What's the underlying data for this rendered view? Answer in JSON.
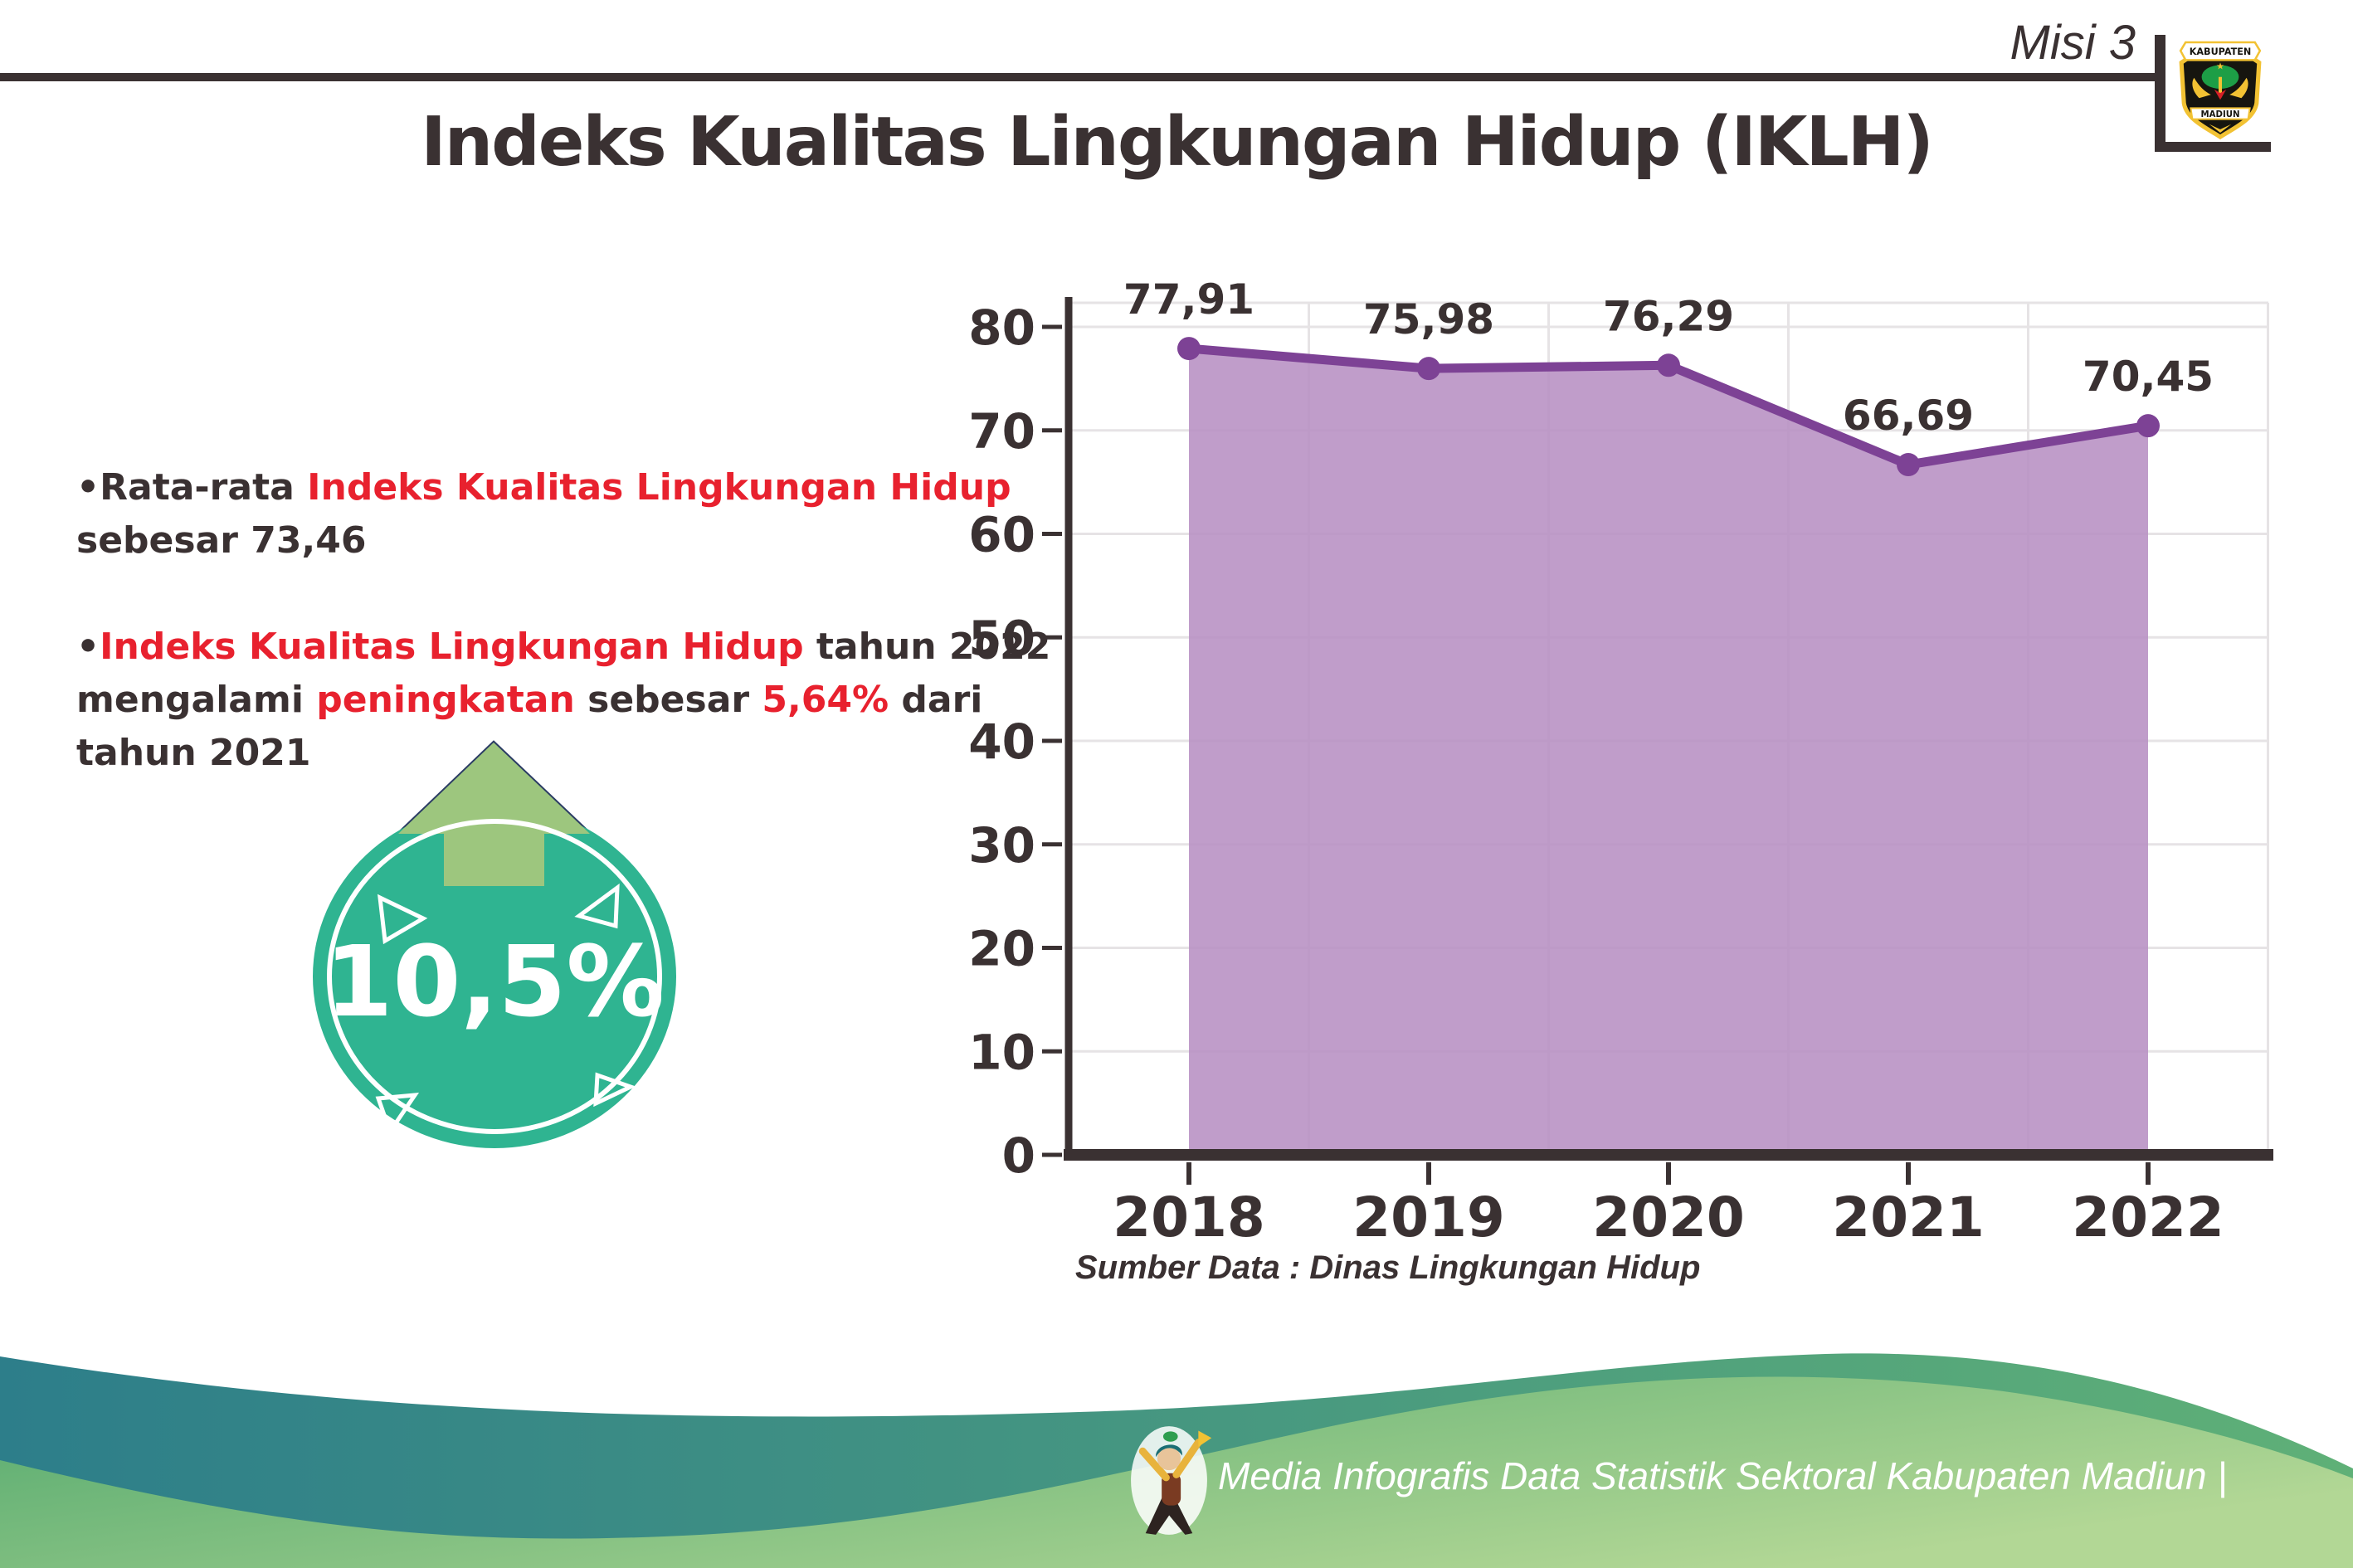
{
  "header": {
    "misi_label": "Misi 3",
    "title": "Indeks Kualitas Lingkungan Hidup (IKLH)",
    "logo": {
      "banner_top": "KABUPATEN",
      "banner_bottom": "MADIUN"
    }
  },
  "bullets": [
    {
      "lines": [
        [
          {
            "t": "•Rata-rata ",
            "c": "dark"
          },
          {
            "t": "Indeks Kualitas Lingkungan Hidup",
            "c": "red"
          }
        ],
        [
          {
            "t": "sebesar 73,46",
            "c": "dark"
          }
        ]
      ]
    },
    {
      "lines": [
        [
          {
            "t": "•",
            "c": "dark"
          },
          {
            "t": "Indeks Kualitas Lingkungan Hidup",
            "c": "red"
          },
          {
            "t": " tahun 2022",
            "c": "dark"
          }
        ],
        [
          {
            "t": "mengalami ",
            "c": "dark"
          },
          {
            "t": "peningkatan",
            "c": "red"
          },
          {
            "t": " sebesar ",
            "c": "dark"
          },
          {
            "t": "5,64%",
            "c": "red"
          },
          {
            "t": " dari",
            "c": "dark"
          }
        ],
        [
          {
            "t": "tahun 2021",
            "c": "dark"
          }
        ]
      ]
    }
  ],
  "badge": {
    "value": "10,5%"
  },
  "chart_data": {
    "type": "area",
    "categories": [
      "2018",
      "2019",
      "2020",
      "2021",
      "2022"
    ],
    "series": [
      {
        "name": "IKLH",
        "values": [
          77.91,
          75.98,
          76.29,
          66.69,
          70.45
        ]
      }
    ],
    "point_labels": [
      "77,91",
      "75,98",
      "76,29",
      "66,69",
      "70,45"
    ],
    "yticks": [
      0,
      10,
      20,
      30,
      40,
      50,
      60,
      70,
      80
    ],
    "ylim": [
      0,
      85
    ],
    "grid": true,
    "legend": false,
    "title": "",
    "xlabel": "",
    "ylabel": ""
  },
  "source_note": "Sumber Data : Dinas Lingkungan Hidup",
  "footer": {
    "caption": "Media Infografis Data Statistik Sektoral Kabupaten Madiun |"
  },
  "colors": {
    "dark_text": "#3a3132",
    "red_text": "#e8212e",
    "line": "#7d4295",
    "area_fill": "#b78fc3",
    "grid": "#e6e3e5",
    "badge_teal": "#2fb491",
    "badge_arrow": "#9dc67e",
    "arrow_outline": "#2b3c64",
    "wave_teal_start": "#2d7e8a",
    "wave_teal_end": "#5fb077",
    "wave_green_start": "#53a96e",
    "wave_green_end": "#b2d795",
    "logo_gold": "#f2c233",
    "logo_green": "#1d9e46",
    "logo_red": "#d42027"
  }
}
